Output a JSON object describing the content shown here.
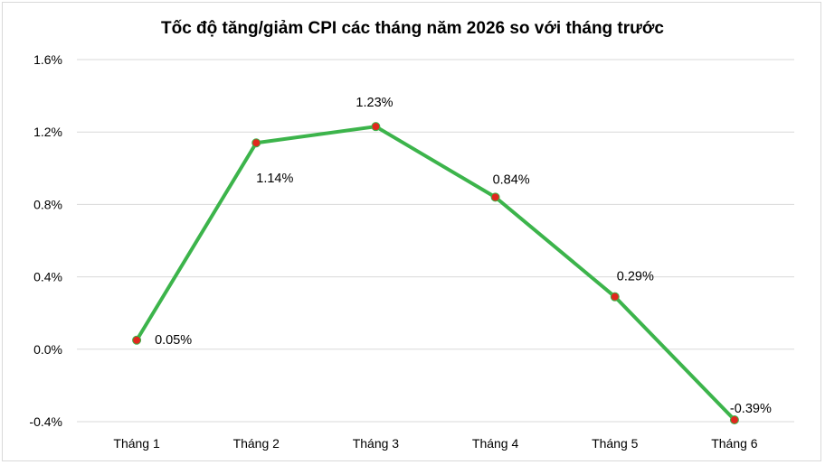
{
  "chart_data": {
    "type": "line",
    "title": "Tốc độ tăng/giảm CPI các tháng năm 2026 so với tháng trước",
    "xlabel": "",
    "ylabel": "",
    "categories": [
      "Tháng 1",
      "Tháng 2",
      "Tháng 3",
      "Tháng 4",
      "Tháng 5",
      "Tháng 6"
    ],
    "series": [
      {
        "values": [
          0.05,
          1.14,
          1.23,
          0.84,
          0.29,
          -0.39
        ],
        "data_labels": [
          "0.05%",
          "1.14%",
          "1.23%",
          "0.84%",
          "0.29%",
          "-0.39%"
        ]
      }
    ],
    "ylim": [
      -0.4,
      1.6
    ],
    "yticks": [
      -0.4,
      0.0,
      0.4,
      0.8,
      1.2,
      1.6
    ],
    "ytick_labels": [
      "-0.4%",
      "0.0%",
      "0.4%",
      "0.8%",
      "1.2%",
      "1.6%"
    ],
    "grid": "horizontal",
    "legend": "none",
    "colors": {
      "line": "#3cb44b",
      "marker_fill": "#e0281e",
      "marker_edge": "#3cb44b",
      "gridline": "#d9d9d9"
    }
  }
}
